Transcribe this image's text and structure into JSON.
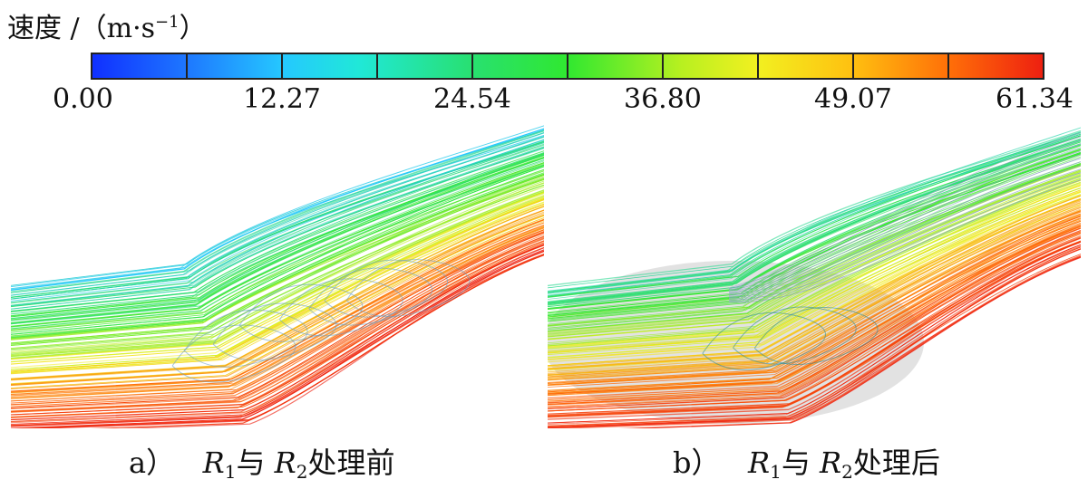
{
  "legend": {
    "title": "速度 /（m·s",
    "title_sup": "−1",
    "title_close": "）",
    "ticks": [
      "0.00",
      "12.27",
      "24.54",
      "36.80",
      "49.07",
      "61.34"
    ],
    "colors": [
      "#1030ff",
      "#25c8ff",
      "#30e830",
      "#f2f020",
      "#ff7008",
      "#ee2010"
    ]
  },
  "panels": [
    {
      "label": "a）",
      "r1": "R",
      "r1_sub": "1",
      "conj": "与",
      "r2": "R",
      "r2_sub": "2",
      "suffix": "处理前"
    },
    {
      "label": "b）",
      "r1": "R",
      "r1_sub": "1",
      "conj": "与",
      "r2": "R",
      "r2_sub": "2",
      "suffix": "处理后"
    }
  ]
}
